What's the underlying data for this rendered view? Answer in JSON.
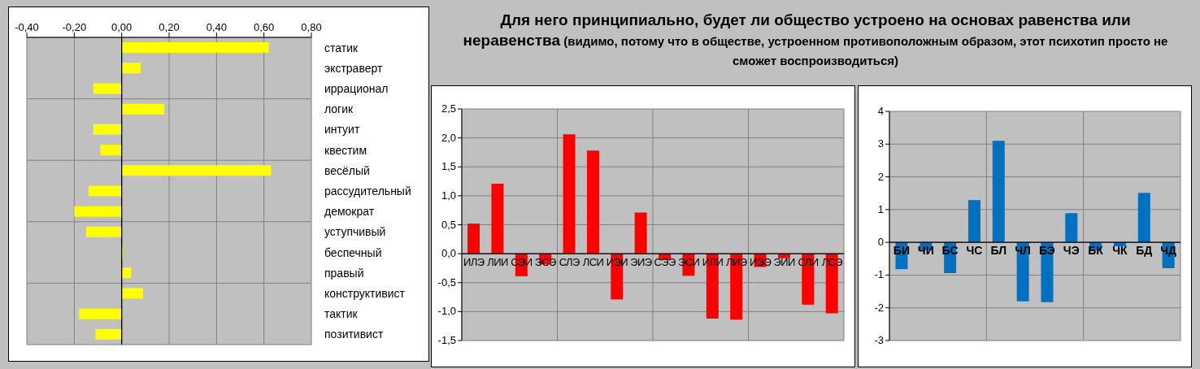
{
  "chart_data": [
    {
      "type": "bar",
      "orientation": "horizontal",
      "categories": [
        "статик",
        "экстраверт",
        "иррационал",
        "логик",
        "интуит",
        "квестим",
        "весёлый",
        "рассудительный",
        "демократ",
        "уступчивый",
        "беспечный",
        "правый",
        "конструктивист",
        "тактик",
        "позитивист"
      ],
      "values": [
        0.62,
        0.08,
        -0.12,
        0.18,
        -0.12,
        -0.09,
        0.63,
        -0.14,
        -0.2,
        -0.15,
        0.005,
        0.04,
        0.09,
        -0.18,
        -0.11
      ],
      "color": "#ffff00",
      "xlim": [
        -0.4,
        0.8
      ],
      "xticks": [
        {
          "value": -0.4,
          "label": "-0,40"
        },
        {
          "value": -0.2,
          "label": "-0,20"
        },
        {
          "value": 0,
          "label": "0,00"
        },
        {
          "value": 0.2,
          "label": "0,20"
        },
        {
          "value": 0.4,
          "label": "0,40"
        },
        {
          "value": 0.6,
          "label": "0,60"
        },
        {
          "value": 0.8,
          "label": "0,80"
        }
      ],
      "grid": true
    },
    {
      "type": "other",
      "title": "Для него принципиально, будет ли общество устроено на основах равенства или неравенства",
      "subtitle": "(видимо, потому что в обществе, устроенном противоположным образом, этот психотип просто не сможет воспроизводиться)"
    },
    {
      "type": "bar",
      "categories": [
        "ИЛЭ",
        "ЛИИ",
        "СЭИ",
        "ЭСЭ",
        "СЛЭ",
        "ЛСИ",
        "ИЭИ",
        "ЭИЭ",
        "СЭЭ",
        "ЭСИ",
        "ИЛИ",
        "ЛИЭ",
        "ИЭЭ",
        "ЭИИ",
        "СЛИ",
        "ЛСЭ"
      ],
      "values": [
        0.52,
        1.21,
        -0.39,
        -0.18,
        2.06,
        1.78,
        -0.79,
        0.71,
        -0.11,
        -0.38,
        -1.12,
        -1.14,
        -0.23,
        -0.08,
        -0.88,
        -1.03
      ],
      "color": "#ff0000",
      "ylim": [
        -1.5,
        2.5
      ],
      "yticks": [
        {
          "value": -1.5,
          "label": "-1,5"
        },
        {
          "value": -1,
          "label": "-1,0"
        },
        {
          "value": -0.5,
          "label": "-0,5"
        },
        {
          "value": 0,
          "label": "0,0"
        },
        {
          "value": 0.5,
          "label": "0,5"
        },
        {
          "value": 1,
          "label": "1,0"
        },
        {
          "value": 1.5,
          "label": "1,5"
        },
        {
          "value": 2,
          "label": "2,0"
        },
        {
          "value": 2.5,
          "label": "2,5"
        }
      ],
      "grid": true
    },
    {
      "type": "bar",
      "categories": [
        "БИ",
        "ЧИ",
        "БС",
        "ЧС",
        "БЛ",
        "ЧЛ",
        "БЭ",
        "ЧЭ",
        "БК",
        "ЧК",
        "БД",
        "ЧД"
      ],
      "values": [
        -0.82,
        -0.24,
        -0.94,
        1.29,
        3.1,
        -1.8,
        -1.83,
        0.89,
        -0.24,
        -0.12,
        1.51,
        -0.79
      ],
      "color": "#0070c0",
      "ylim": [
        -3,
        4
      ],
      "yticks": [
        -3,
        -2,
        -1,
        0,
        1,
        2,
        3,
        4
      ],
      "grid": true
    }
  ]
}
